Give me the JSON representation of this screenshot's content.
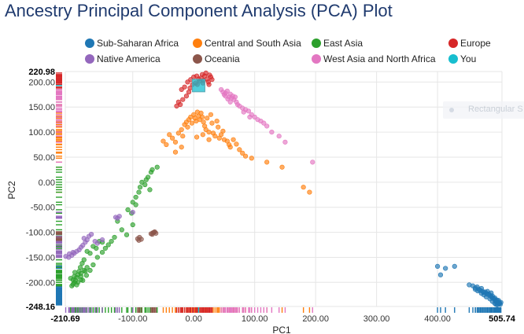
{
  "page": {
    "title": "Ancestry Principal Component Analysis (PCA) Plot"
  },
  "overlay": {
    "text": "Rectangular S"
  },
  "chart_data": {
    "type": "scatter",
    "title": "Ancestry Principal Component Analysis (PCA) Plot",
    "xlabel": "PC1",
    "ylabel": "PC2",
    "xlim": [
      -210.69,
      505.74
    ],
    "ylim": [
      -248.16,
      220.98
    ],
    "x_ticks": [
      "-210.69",
      "-100.00",
      "0.00",
      "100.00",
      "200.00",
      "300.00",
      "400.00",
      "505.74"
    ],
    "y_ticks": [
      "220.98",
      "200.00",
      "150.00",
      "100.00",
      "50.00",
      "0.00",
      "-50.00",
      "-100.00",
      "-150.00",
      "-200.00",
      "-248.16"
    ],
    "grid": true,
    "legend_position": "top",
    "series": [
      {
        "name": "Sub-Saharan Africa",
        "color": "#1f77b4",
        "marker": "circle",
        "points": [
          [
            400,
            -168
          ],
          [
            413,
            -172
          ],
          [
            428,
            -168
          ],
          [
            405,
            -185
          ],
          [
            452,
            -205
          ],
          [
            458,
            -207
          ],
          [
            462,
            -211
          ],
          [
            465,
            -209
          ],
          [
            468,
            -214
          ],
          [
            470,
            -216
          ],
          [
            472,
            -212
          ],
          [
            474,
            -218
          ],
          [
            476,
            -220
          ],
          [
            478,
            -219
          ],
          [
            480,
            -222
          ],
          [
            482,
            -224
          ],
          [
            484,
            -223
          ],
          [
            486,
            -226
          ],
          [
            488,
            -228
          ],
          [
            489,
            -230
          ],
          [
            490,
            -227
          ],
          [
            492,
            -232
          ],
          [
            493,
            -234
          ],
          [
            494,
            -231
          ],
          [
            495,
            -236
          ],
          [
            496,
            -238
          ],
          [
            497,
            -235
          ],
          [
            498,
            -240
          ],
          [
            499,
            -242
          ],
          [
            500,
            -239
          ],
          [
            501,
            -243
          ],
          [
            502,
            -241
          ],
          [
            503,
            -244
          ],
          [
            498,
            -245
          ],
          [
            494,
            -242
          ],
          [
            496,
            -244
          ],
          [
            490,
            -238
          ],
          [
            486,
            -233
          ],
          [
            480,
            -229
          ],
          [
            476,
            -225
          ],
          [
            472,
            -222
          ],
          [
            466,
            -217
          ],
          [
            462,
            -214
          ],
          [
            500,
            -236
          ],
          [
            504,
            -240
          ],
          [
            488,
            -221
          ],
          [
            482,
            -218
          ]
        ]
      },
      {
        "name": "Central and South Asia",
        "color": "#ff7f0e",
        "marker": "circle",
        "points": [
          [
            -40,
            95
          ],
          [
            -35,
            88
          ],
          [
            -30,
            80
          ],
          [
            -25,
            98
          ],
          [
            -20,
            105
          ],
          [
            -18,
            92
          ],
          [
            -15,
            115
          ],
          [
            -12,
            120
          ],
          [
            -10,
            110
          ],
          [
            -8,
            125
          ],
          [
            -5,
            130
          ],
          [
            -3,
            118
          ],
          [
            0,
            135
          ],
          [
            2,
            128
          ],
          [
            4,
            122
          ],
          [
            6,
            140
          ],
          [
            8,
            132
          ],
          [
            10,
            125
          ],
          [
            12,
            138
          ],
          [
            14,
            130
          ],
          [
            16,
            120
          ],
          [
            18,
            112
          ],
          [
            20,
            105
          ],
          [
            22,
            128
          ],
          [
            25,
            100
          ],
          [
            28,
            135
          ],
          [
            30,
            118
          ],
          [
            32,
            98
          ],
          [
            35,
            92
          ],
          [
            38,
            122
          ],
          [
            40,
            110
          ],
          [
            42,
            88
          ],
          [
            45,
            95
          ],
          [
            48,
            102
          ],
          [
            50,
            85
          ],
          [
            55,
            82
          ],
          [
            58,
            75
          ],
          [
            60,
            70
          ],
          [
            65,
            85
          ],
          [
            70,
            76
          ],
          [
            75,
            65
          ],
          [
            80,
            58
          ],
          [
            85,
            52
          ],
          [
            95,
            48
          ],
          [
            120,
            40
          ],
          [
            145,
            30
          ],
          [
            180,
            -10
          ],
          [
            190,
            -20
          ],
          [
            -50,
            82
          ],
          [
            -45,
            75
          ],
          [
            5,
            90
          ],
          [
            15,
            95
          ],
          [
            25,
            85
          ],
          [
            -20,
            70
          ],
          [
            -30,
            60
          ]
        ]
      },
      {
        "name": "East Asia",
        "color": "#2ca02c",
        "marker": "circle",
        "points": [
          [
            -125,
            -78
          ],
          [
            -118,
            -95
          ],
          [
            -110,
            -105
          ],
          [
            -100,
            -85
          ],
          [
            -150,
            -120
          ],
          [
            -155,
            -118
          ],
          [
            -160,
            -132
          ],
          [
            -165,
            -128
          ],
          [
            -170,
            -142
          ],
          [
            -175,
            -138
          ],
          [
            -180,
            -155
          ],
          [
            -183,
            -162
          ],
          [
            -186,
            -170
          ],
          [
            -188,
            -178
          ],
          [
            -190,
            -185
          ],
          [
            -192,
            -190
          ],
          [
            -194,
            -196
          ],
          [
            -196,
            -200
          ],
          [
            -198,
            -204
          ],
          [
            -200,
            -207
          ],
          [
            -185,
            -182
          ],
          [
            -180,
            -176
          ],
          [
            -175,
            -170
          ],
          [
            -185,
            -195
          ],
          [
            -190,
            -200
          ],
          [
            -192,
            -205
          ],
          [
            -195,
            -180
          ],
          [
            -185,
            -188
          ],
          [
            -178,
            -178
          ],
          [
            -198,
            -195
          ],
          [
            -202,
            -192
          ],
          [
            -196,
            -188
          ],
          [
            -182,
            -196
          ],
          [
            -176,
            -186
          ],
          [
            -170,
            -176
          ],
          [
            -165,
            -165
          ],
          [
            -158,
            -150
          ],
          [
            -150,
            -140
          ],
          [
            -145,
            -132
          ],
          [
            -140,
            -125
          ],
          [
            -135,
            -118
          ],
          [
            -130,
            -110
          ],
          [
            -100,
            -40
          ],
          [
            -95,
            -30
          ],
          [
            -90,
            -20
          ],
          [
            -88,
            -10
          ],
          [
            -85,
            0
          ],
          [
            -80,
            -5
          ],
          [
            -78,
            5
          ],
          [
            -75,
            10
          ],
          [
            -72,
            -15
          ],
          [
            -70,
            20
          ],
          [
            -68,
            25
          ],
          [
            -60,
            30
          ],
          [
            -108,
            -55
          ],
          [
            -102,
            -62
          ],
          [
            -95,
            -45
          ]
        ]
      },
      {
        "name": "Europe",
        "color": "#d62728",
        "marker": "circle",
        "points": [
          [
            -10,
            200
          ],
          [
            -5,
            205
          ],
          [
            0,
            210
          ],
          [
            3,
            198
          ],
          [
            5,
            212
          ],
          [
            8,
            206
          ],
          [
            10,
            202
          ],
          [
            12,
            208
          ],
          [
            14,
            215
          ],
          [
            16,
            203
          ],
          [
            18,
            212
          ],
          [
            20,
            218
          ],
          [
            22,
            206
          ],
          [
            24,
            200
          ],
          [
            26,
            214
          ],
          [
            28,
            210
          ],
          [
            30,
            205
          ],
          [
            -15,
            190
          ],
          [
            -20,
            185
          ],
          [
            -25,
            160
          ],
          [
            -22,
            155
          ],
          [
            -18,
            165
          ],
          [
            -12,
            172
          ],
          [
            -8,
            180
          ],
          [
            -28,
            152
          ],
          [
            -2,
            195
          ],
          [
            6,
            195
          ],
          [
            15,
            198
          ],
          [
            25,
            195
          ],
          [
            -6,
            188
          ]
        ]
      },
      {
        "name": "Native America",
        "color": "#9467bd",
        "marker": "circle",
        "points": [
          [
            -210,
            -148
          ],
          [
            -205,
            -150
          ],
          [
            -200,
            -146
          ],
          [
            -196,
            -142
          ],
          [
            -192,
            -138
          ],
          [
            -188,
            -135
          ],
          [
            -185,
            -130
          ],
          [
            -182,
            -126
          ],
          [
            -178,
            -120
          ],
          [
            -175,
            -115
          ],
          [
            -180,
            -112
          ],
          [
            -172,
            -108
          ],
          [
            -168,
            -104
          ],
          [
            -162,
            -118
          ],
          [
            -158,
            -122
          ],
          [
            -150,
            -115
          ],
          [
            -128,
            -70
          ],
          [
            -125,
            -72
          ],
          [
            -122,
            -68
          ],
          [
            -100,
            -60
          ],
          [
            -204,
            -143
          ],
          [
            -198,
            -140
          ]
        ]
      },
      {
        "name": "Oceania",
        "color": "#8c564b",
        "marker": "circle",
        "points": [
          [
            -92,
            -113
          ],
          [
            -89,
            -110
          ],
          [
            -86,
            -114
          ],
          [
            -90,
            -116
          ],
          [
            -70,
            -103
          ],
          [
            -67,
            -101
          ],
          [
            -65,
            -100
          ],
          [
            -62,
            -102
          ],
          [
            -68,
            -104
          ],
          [
            -64,
            -99
          ]
        ]
      },
      {
        "name": "West Asia and North Africa",
        "color": "#e377c2",
        "marker": "circle",
        "points": [
          [
            45,
            185
          ],
          [
            48,
            180
          ],
          [
            50,
            175
          ],
          [
            52,
            178
          ],
          [
            55,
            182
          ],
          [
            58,
            170
          ],
          [
            60,
            176
          ],
          [
            62,
            168
          ],
          [
            64,
            172
          ],
          [
            66,
            165
          ],
          [
            68,
            170
          ],
          [
            70,
            160
          ],
          [
            75,
            152
          ],
          [
            80,
            148
          ],
          [
            85,
            145
          ],
          [
            90,
            142
          ],
          [
            95,
            135
          ],
          [
            100,
            130
          ],
          [
            105,
            125
          ],
          [
            110,
            122
          ],
          [
            115,
            118
          ],
          [
            120,
            112
          ],
          [
            128,
            100
          ],
          [
            140,
            92
          ],
          [
            150,
            80
          ],
          [
            195,
            40
          ],
          [
            52,
            172
          ],
          [
            56,
            166
          ],
          [
            60,
            160
          ],
          [
            72,
            155
          ],
          [
            82,
            140
          ],
          [
            92,
            130
          ]
        ]
      },
      {
        "name": "You",
        "color": "#17becf",
        "marker": "square",
        "points": [
          [
            8,
            193
          ]
        ]
      }
    ]
  }
}
